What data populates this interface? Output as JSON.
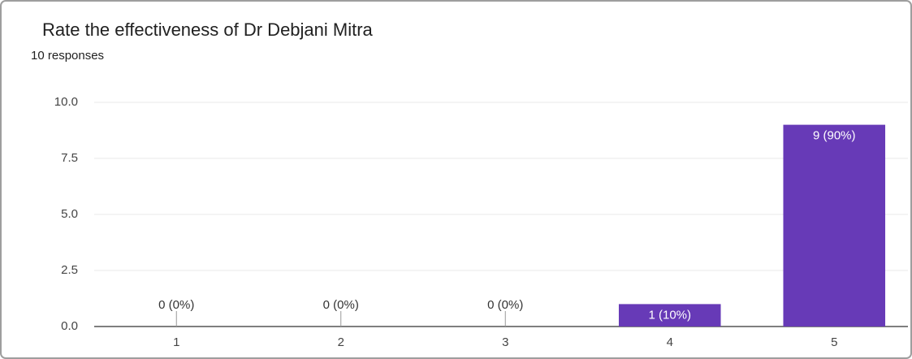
{
  "chart_data": {
    "type": "bar",
    "title": "Rate the effectiveness of Dr Debjani Mitra",
    "subtitle": "10 responses",
    "categories": [
      "1",
      "2",
      "3",
      "4",
      "5"
    ],
    "values": [
      0,
      0,
      0,
      1,
      9
    ],
    "value_labels": [
      "0 (0%)",
      "0 (0%)",
      "0 (0%)",
      "1 (10%)",
      "9 (90%)"
    ],
    "color": "#673ab7",
    "ylim": [
      0,
      10
    ],
    "yticks": [
      {
        "value": 0,
        "label": "0.0"
      },
      2.5,
      {
        "value": 5,
        "label": "5.0"
      },
      7.5,
      {
        "value": 10,
        "label": "10.0"
      }
    ],
    "grid": true
  }
}
